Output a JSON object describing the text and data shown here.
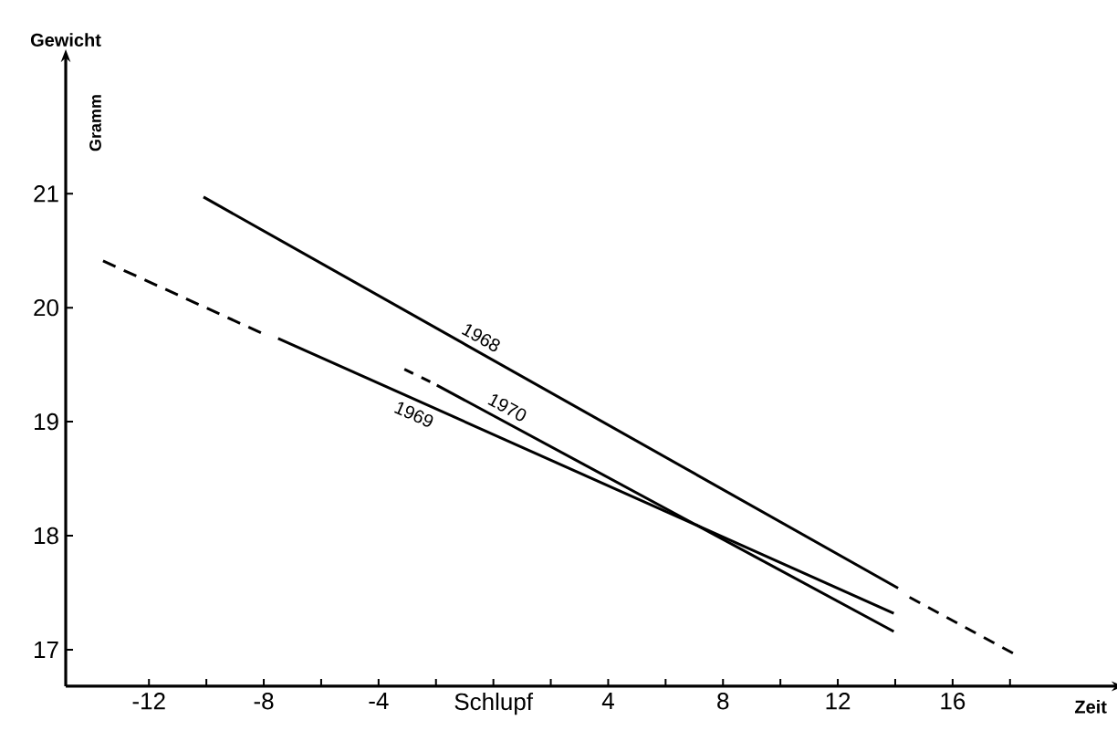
{
  "chart_data": {
    "type": "line",
    "xlabel": "Zeit",
    "ylabel": "Gewicht",
    "annotations": [
      "Gramm"
    ],
    "xlim": [
      -14.9,
      21.6
    ],
    "ylim": [
      16.68,
      22.17
    ],
    "xticks": [
      -12,
      {
        "value": -10,
        "label": null
      },
      -8,
      {
        "value": -6,
        "label": null
      },
      -4,
      {
        "value": -2,
        "label": null
      },
      {
        "value": 0,
        "label": "Schlupf"
      },
      {
        "value": 2,
        "label": null
      },
      4,
      {
        "value": 6,
        "label": null
      },
      8,
      {
        "value": 10,
        "label": null
      },
      12,
      {
        "value": 14,
        "label": null
      },
      16,
      {
        "value": 18,
        "label": null
      }
    ],
    "yticks": [
      17,
      18,
      19,
      20,
      21
    ],
    "grid": false,
    "legend": false,
    "marker": "none",
    "line_style": "solid",
    "series": [
      {
        "name": "1968",
        "color": "#000000",
        "x": [
          -10.1,
          14.1
        ],
        "values": [
          20.97,
          17.54
        ]
      },
      {
        "color": "#000000",
        "line_style": "dashed",
        "x": [
          14.5,
          18.1
        ],
        "values": [
          17.46,
          16.97
        ]
      },
      {
        "color": "#000000",
        "line_style": "dashed",
        "x": [
          -13.6,
          -8.1
        ],
        "values": [
          20.41,
          19.78
        ]
      },
      {
        "name": "1969",
        "color": "#000000",
        "x": [
          -7.5,
          13.95
        ],
        "values": [
          19.73,
          17.32
        ]
      },
      {
        "color": "#000000",
        "line_style": "dashed",
        "x": [
          -3.1,
          -2.2
        ],
        "values": [
          19.46,
          19.35
        ]
      },
      {
        "name": "1970",
        "color": "#000000",
        "x": [
          -1.97,
          13.95
        ],
        "values": [
          19.32,
          17.16
        ]
      }
    ]
  }
}
